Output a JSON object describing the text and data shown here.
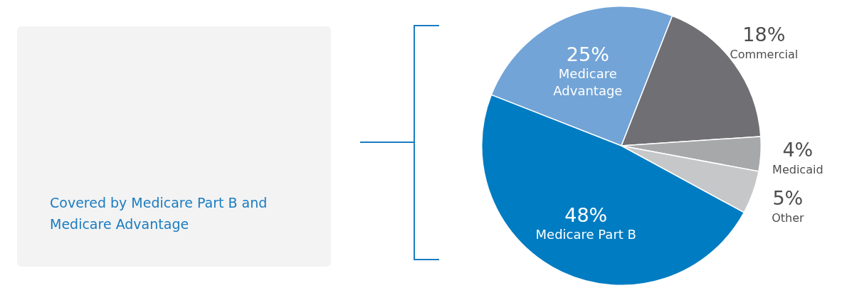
{
  "chart_data": {
    "type": "pie",
    "categories": [
      "Medicare Advantage",
      "Commercial",
      "Medicaid",
      "Other",
      "Medicare Part B"
    ],
    "values": [
      25,
      18,
      4,
      5,
      48
    ],
    "value_labels": [
      "25%",
      "18%",
      "4%",
      "5%",
      "48%"
    ],
    "colors": [
      "#72a4d7",
      "#6f6f74",
      "#a7a8aa",
      "#c6c7c9",
      "#007cc2"
    ],
    "legend": false,
    "annotations": [
      "Covered by Medicare Part B and Medicare Advantage"
    ]
  }
}
